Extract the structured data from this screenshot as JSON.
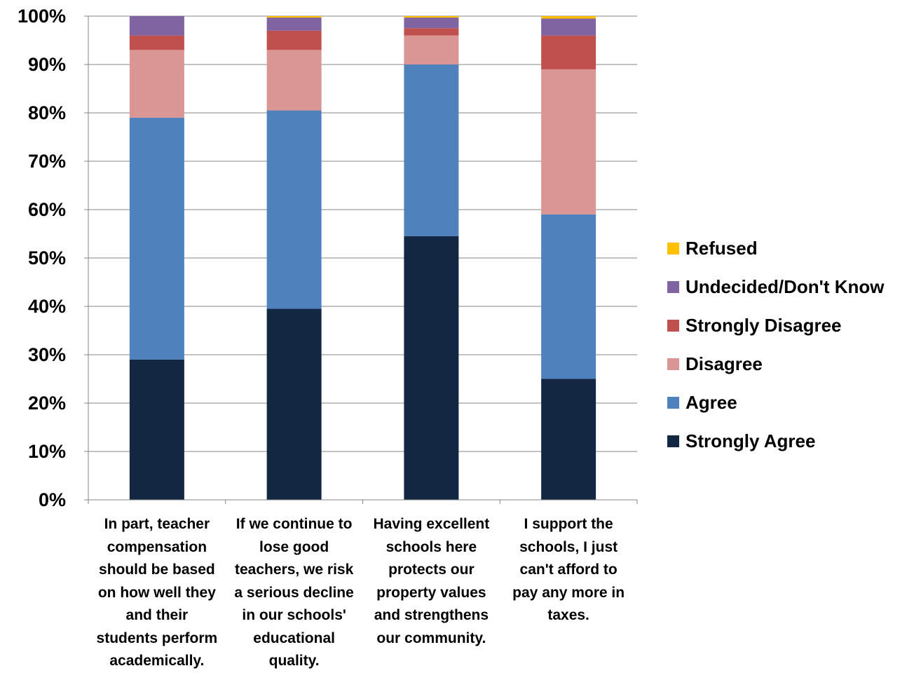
{
  "chart_data": {
    "type": "bar",
    "stacked": true,
    "categories": [
      "In part, teacher compensation should be based on how well they and their students perform academically.",
      "If we continue to lose good teachers, we risk a serious decline in our schools' educational quality.",
      "Having excellent schools here protects our property values and strengthens our community.",
      "I support the schools, I just can't afford to pay any more in taxes."
    ],
    "category_lines": [
      [
        "In part, teacher",
        "compensation",
        "should be based",
        "on how well they",
        "and their",
        "students perform",
        "academically."
      ],
      [
        "If we continue to",
        "lose good",
        "teachers, we risk",
        "a serious decline",
        "in our schools'",
        "educational",
        "quality."
      ],
      [
        "Having excellent",
        "schools here",
        "protects our",
        "property values",
        "and strengthens",
        "our community."
      ],
      [
        "I support the",
        "schools, I just",
        "can't afford to",
        "pay any more in",
        "taxes."
      ]
    ],
    "series": [
      {
        "name": "Strongly Agree",
        "color": "#132742",
        "values": [
          29,
          39.5,
          54.5,
          25
        ]
      },
      {
        "name": "Agree",
        "color": "#4f81bd",
        "values": [
          50,
          41,
          35.5,
          34
        ]
      },
      {
        "name": "Disagree",
        "color": "#d99694",
        "values": [
          14,
          12.5,
          6,
          30
        ]
      },
      {
        "name": "Strongly Disagree",
        "color": "#c0504d",
        "values": [
          3,
          4,
          1.5,
          7
        ]
      },
      {
        "name": "Undecided/Don't Know",
        "color": "#8064a2",
        "values": [
          4,
          2.7,
          2.2,
          3.5
        ]
      },
      {
        "name": "Refused",
        "color": "#ffc000",
        "values": [
          0,
          0.3,
          0.3,
          0.5
        ]
      }
    ],
    "y_ticks": [
      "0%",
      "10%",
      "20%",
      "30%",
      "40%",
      "50%",
      "60%",
      "70%",
      "80%",
      "90%",
      "100%"
    ],
    "ylim": [
      0,
      100
    ],
    "grid": true,
    "legend_position": "right"
  }
}
